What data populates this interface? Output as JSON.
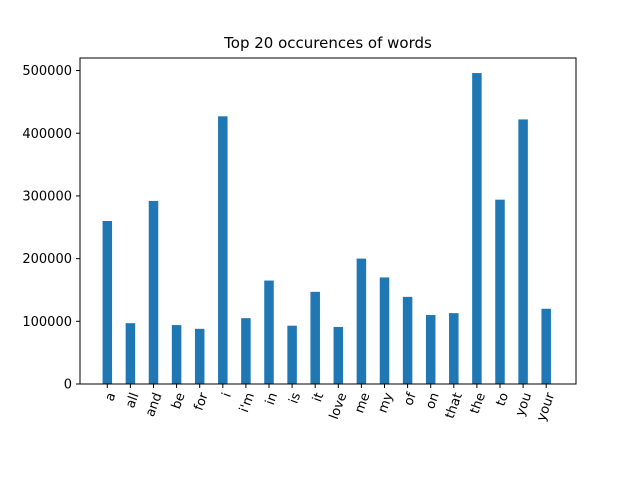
{
  "chart_data": {
    "type": "bar",
    "title": "Top 20 occurences of words",
    "xlabel": "",
    "ylabel": "",
    "categories": [
      "a",
      "all",
      "and",
      "be",
      "for",
      "i",
      "i'm",
      "in",
      "is",
      "it",
      "love",
      "me",
      "my",
      "of",
      "on",
      "that",
      "the",
      "to",
      "you",
      "your"
    ],
    "values": [
      260000,
      97000,
      292000,
      94000,
      88000,
      427000,
      105000,
      165000,
      93000,
      147000,
      91000,
      200000,
      170000,
      139000,
      110000,
      113000,
      496000,
      294000,
      422000,
      120000
    ],
    "yticks": [
      0,
      100000,
      200000,
      300000,
      400000,
      500000
    ],
    "ylim": [
      0,
      520000
    ],
    "grid": false,
    "bar_color": "#1f77b4"
  }
}
